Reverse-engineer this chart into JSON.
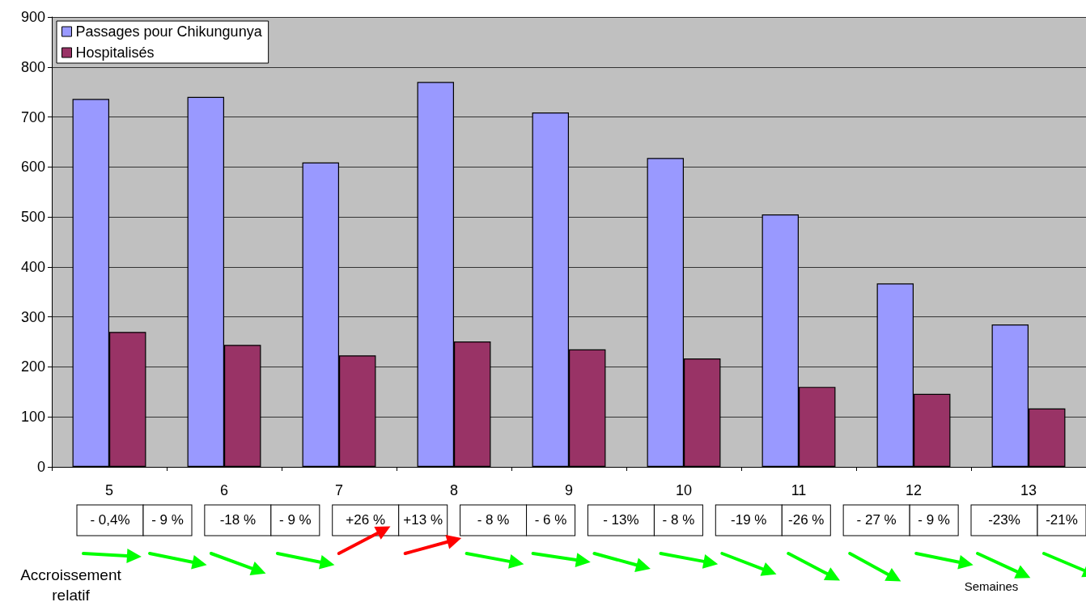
{
  "chart_data": {
    "type": "bar",
    "categories": [
      "5",
      "6",
      "7",
      "8",
      "9",
      "10",
      "11",
      "12",
      "13"
    ],
    "series": [
      {
        "name": "Passages pour Chikungunya",
        "color": "#9999ff",
        "values": [
          736,
          740,
          609,
          770,
          709,
          618,
          505,
          367,
          285
        ]
      },
      {
        "name": "Hospitalisés",
        "color": "#993366",
        "values": [
          270,
          244,
          223,
          251,
          235,
          217,
          160,
          146,
          117
        ]
      }
    ],
    "ylim": [
      0,
      900
    ],
    "yticks": [
      0,
      100,
      200,
      300,
      400,
      500,
      600,
      700,
      800,
      900
    ],
    "grid": "y",
    "legend": "top left",
    "annotations": [
      "- 0,4%",
      "- 9 %",
      "-18 %",
      "- 9 %",
      "+26 %",
      "+13 %",
      "- 8 %",
      "- 6 %",
      "- 13%",
      "- 8 %",
      "-19 %",
      "-26 %",
      "- 27 %",
      "- 9 %",
      "-23%",
      "-21%",
      "Accroissement relatif",
      "Semaines"
    ]
  }
}
